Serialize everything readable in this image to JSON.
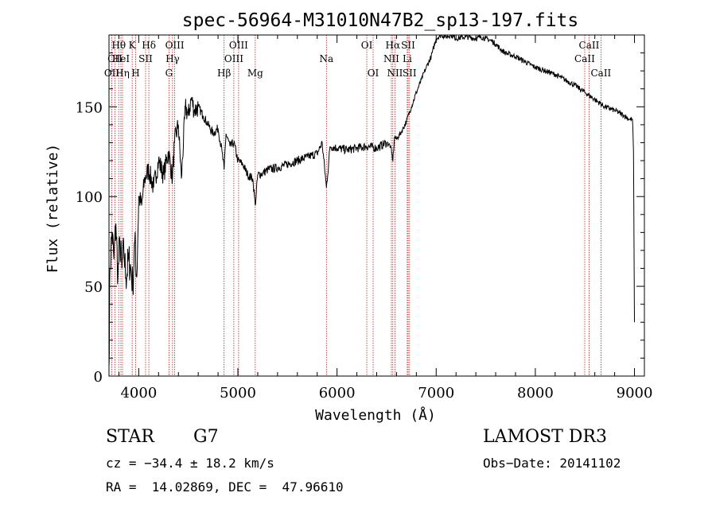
{
  "chart_data": {
    "type": "line",
    "title": "spec-56964-M31010N47B2_sp13-197.fits",
    "xlabel": "Wavelength (Å)",
    "ylabel": "Flux (relative)",
    "xlim": [
      3700,
      9100
    ],
    "ylim": [
      0,
      190
    ],
    "xticks": [
      4000,
      5000,
      6000,
      7000,
      8000,
      9000
    ],
    "yticks": [
      0,
      50,
      100,
      150
    ],
    "grid": false,
    "series": [
      {
        "name": "flux",
        "x": [
          3700,
          3710,
          3730,
          3750,
          3770,
          3790,
          3810,
          3830,
          3850,
          3870,
          3900,
          3920,
          3940,
          3960,
          3980,
          4000,
          4030,
          4060,
          4100,
          4150,
          4200,
          4250,
          4300,
          4340,
          4360,
          4400,
          4430,
          4470,
          4500,
          4530,
          4560,
          4600,
          4650,
          4700,
          4750,
          4800,
          4840,
          4861,
          4880,
          4920,
          4960,
          5000,
          5050,
          5100,
          5150,
          5175,
          5200,
          5250,
          5300,
          5400,
          5500,
          5600,
          5700,
          5800,
          5850,
          5893,
          5930,
          6000,
          6100,
          6200,
          6300,
          6400,
          6500,
          6540,
          6563,
          6580,
          6600,
          6650,
          6700,
          6750,
          6800,
          6850,
          6900,
          6950,
          7000,
          7050,
          7100,
          7150,
          7200,
          7300,
          7400,
          7450,
          7500,
          7550,
          7600,
          7650,
          7700,
          7800,
          7900,
          8000,
          8100,
          8200,
          8300,
          8400,
          8500,
          8600,
          8700,
          8800,
          8900,
          8950,
          8980,
          8990,
          9000
        ],
        "y": [
          5,
          60,
          80,
          65,
          85,
          55,
          75,
          60,
          70,
          55,
          65,
          60,
          50,
          75,
          55,
          100,
          95,
          110,
          115,
          105,
          120,
          112,
          125,
          110,
          130,
          140,
          110,
          150,
          145,
          155,
          148,
          150,
          145,
          140,
          135,
          138,
          125,
          115,
          135,
          128,
          130,
          120,
          118,
          112,
          110,
          95,
          112,
          113,
          115,
          116,
          118,
          120,
          122,
          124,
          130,
          105,
          128,
          127,
          126,
          127,
          128,
          127,
          130,
          128,
          120,
          133,
          132,
          136,
          142,
          150,
          158,
          165,
          172,
          178,
          188,
          190,
          189,
          190,
          188,
          189,
          188,
          189,
          188,
          187,
          185,
          182,
          180,
          178,
          175,
          172,
          170,
          168,
          165,
          162,
          158,
          154,
          150,
          148,
          145,
          143,
          143,
          125,
          30
        ]
      }
    ],
    "line_markers": [
      {
        "label": "Hθ",
        "x": 3798,
        "row": 1
      },
      {
        "label": "CII",
        "x": 3760,
        "row": 2
      },
      {
        "label": "OII",
        "x": 3728,
        "row": 3
      },
      {
        "label": "HeI",
        "x": 3820,
        "row": 2
      },
      {
        "label": "Hη",
        "x": 3836,
        "row": 3
      },
      {
        "label": "K",
        "x": 3934,
        "row": 1
      },
      {
        "label": "H",
        "x": 3969,
        "row": 3
      },
      {
        "label": "SII",
        "x": 4069,
        "row": 2
      },
      {
        "label": "Hδ",
        "x": 4102,
        "row": 1
      },
      {
        "label": "OIII",
        "x": 4363,
        "row": 1
      },
      {
        "label": "Hγ",
        "x": 4341,
        "row": 2
      },
      {
        "label": "G",
        "x": 4305,
        "row": 3
      },
      {
        "label": "Hβ",
        "x": 4861,
        "row": 3
      },
      {
        "label": "OIII",
        "x": 4959,
        "row": 2
      },
      {
        "label": "OIII",
        "x": 5007,
        "row": 1
      },
      {
        "label": "Mg",
        "x": 5175,
        "row": 3
      },
      {
        "label": "Na",
        "x": 5893,
        "row": 2
      },
      {
        "label": "OI",
        "x": 6300,
        "row": 1
      },
      {
        "label": "OI",
        "x": 6364,
        "row": 3
      },
      {
        "label": "Hα",
        "x": 6563,
        "row": 1
      },
      {
        "label": "NII",
        "x": 6548,
        "row": 2
      },
      {
        "label": "NII",
        "x": 6584,
        "row": 3
      },
      {
        "label": "Li",
        "x": 6708,
        "row": 2
      },
      {
        "label": "SII",
        "x": 6717,
        "row": 1
      },
      {
        "label": "SII",
        "x": 6731,
        "row": 3
      },
      {
        "label": "CaII",
        "x": 8498,
        "row": 2
      },
      {
        "label": "CaII",
        "x": 8542,
        "row": 1
      },
      {
        "label": "CaII",
        "x": 8662,
        "row": 3
      }
    ],
    "colors": {
      "axis": "#000000",
      "line": "#000000",
      "marker": "#b22222"
    }
  },
  "info": {
    "object_type": "STAR",
    "subclass": "G7",
    "survey": "LAMOST DR3",
    "cz": "cz = −34.4 ± 18.2 km/s",
    "obs_date": "Obs−Date: 20141102",
    "radec": "RA =  14.02869, DEC =  47.96610"
  }
}
